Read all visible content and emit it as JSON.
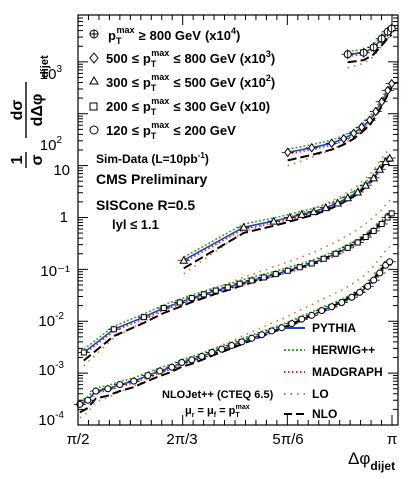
{
  "chart_data": {
    "type": "scatter",
    "title": "",
    "xlabel_main": "Δφ",
    "xlabel_sub": "dijet",
    "ylabel_frac_num": "1",
    "ylabel_frac_den": "σ",
    "ylabel_deriv_num": "dσ",
    "ylabel_deriv_den": "dΔφ",
    "ylabel_sub": "dijet",
    "xlim": [
      1.5708,
      3.1416
    ],
    "ylim": [
      0.0001,
      8000
    ],
    "y_scale": "log",
    "x_ticks": [
      {
        "value": 1.5708,
        "label": "π/2"
      },
      {
        "value": 2.0944,
        "label": "2π/3"
      },
      {
        "value": 2.618,
        "label": "5π/6"
      },
      {
        "value": 3.1416,
        "label": "π"
      }
    ],
    "y_ticks": [
      {
        "value": 0.0001,
        "label_base": "10",
        "label_exp": "-4"
      },
      {
        "value": 0.001,
        "label_base": "10",
        "label_exp": "-3"
      },
      {
        "value": 0.01,
        "label_base": "10",
        "label_exp": "-2"
      },
      {
        "value": 0.1,
        "label": "10⁻¹"
      },
      {
        "value": 1,
        "label": "1"
      },
      {
        "value": 10,
        "label": "10"
      },
      {
        "value": 100,
        "label_base": "10",
        "label_exp": "2"
      },
      {
        "value": 1000,
        "label_base": "10",
        "label_exp": "3"
      }
    ],
    "pt_bins": [
      {
        "symbol": "cross-circle",
        "name": "p_T^max ≥ 800 GeV (x10^4)",
        "low": "",
        "op1": "",
        "op2": "≥",
        "high": "800 GeV",
        "scale": "(x10",
        "scale_exp": "4",
        "scale_close": ")"
      },
      {
        "symbol": "diamond",
        "name": "500 ≤ p_T^max ≤ 800 GeV (x10^3)",
        "low": "500",
        "op1": "≤",
        "op2": "≤",
        "high": "800 GeV",
        "scale": "(x10",
        "scale_exp": "3",
        "scale_close": ")"
      },
      {
        "symbol": "triangle",
        "name": "300 ≤ p_T^max ≤ 500 GeV (x10^2)",
        "low": "300",
        "op1": "≤",
        "op2": "≤",
        "high": "500 GeV",
        "scale": "(x10",
        "scale_exp": "2",
        "scale_close": ")"
      },
      {
        "symbol": "square",
        "name": "200 ≤ p_T^max ≤ 300 GeV (x10)",
        "low": "200",
        "op1": "≤",
        "op2": "≤",
        "high": "300 GeV",
        "scale": "(x10)",
        "scale_exp": "",
        "scale_close": ""
      },
      {
        "symbol": "circle",
        "name": "120 ≤ p_T^max ≤ 200 GeV",
        "low": "120",
        "op1": "≤",
        "op2": "≤",
        "high": "200 GeV",
        "scale": "",
        "scale_exp": "",
        "scale_close": ""
      }
    ],
    "legend_pt_label": "p",
    "legend_pt_sub": "T",
    "legend_pt_sup": "max",
    "annotations": {
      "simdata": "Sim-Data (L=10pb",
      "simdata_exp": "-1",
      "simdata_close": ")",
      "cms": "CMS Preliminary",
      "siscone": "SISCone R=0.5",
      "rapidity": "lyl ≤ 1.1",
      "nlojet": "NLOJet++ (CTEQ 6.5)",
      "scale_mu": "μ",
      "scale_r": "r",
      "scale_eq": " = μ",
      "scale_f": "f",
      "scale_eq2": " = p",
      "scale_T": "T",
      "scale_max": "max"
    },
    "series": [
      {
        "name": "PYTHIA",
        "color": "#2040c0",
        "style": "solid"
      },
      {
        "name": "HERWIG++",
        "color": "#33aa33",
        "style": "dotted-dense"
      },
      {
        "name": "MADGRAPH",
        "color": "#dd2222",
        "style": "dotted"
      },
      {
        "name": "LO",
        "color": "#cc7733",
        "style": "dotted-sparse"
      },
      {
        "name": "NLO",
        "color": "#000000",
        "style": "dashed"
      }
    ],
    "data_points": {
      "circle": {
        "x": [
          1.58,
          1.62,
          1.66,
          1.72,
          1.78,
          1.85,
          1.92,
          1.98,
          2.04,
          2.09,
          2.14,
          2.19,
          2.24,
          2.29,
          2.34,
          2.39,
          2.44,
          2.49,
          2.54,
          2.59,
          2.64,
          2.69,
          2.74,
          2.79,
          2.84,
          2.89,
          2.94,
          2.98,
          3.02,
          3.05,
          3.08,
          3.11,
          3.13
        ],
        "y": [
          0.00025,
          0.0003,
          0.00045,
          0.0005,
          0.0006,
          0.0007,
          0.0009,
          0.0011,
          0.0013,
          0.0016,
          0.0018,
          0.0021,
          0.0025,
          0.0029,
          0.0034,
          0.004,
          0.0047,
          0.0055,
          0.0065,
          0.0075,
          0.009,
          0.011,
          0.013,
          0.016,
          0.019,
          0.023,
          0.029,
          0.036,
          0.047,
          0.062,
          0.085,
          0.12,
          0.14
        ]
      },
      "square": {
        "x": [
          1.6,
          1.75,
          1.9,
          2.0,
          2.08,
          2.14,
          2.2,
          2.26,
          2.32,
          2.38,
          2.44,
          2.5,
          2.56,
          2.62,
          2.68,
          2.74,
          2.8,
          2.86,
          2.92,
          2.97,
          3.01,
          3.05,
          3.09,
          3.12,
          3.14
        ],
        "y": [
          0.0025,
          0.007,
          0.012,
          0.018,
          0.023,
          0.028,
          0.033,
          0.039,
          0.045,
          0.053,
          0.061,
          0.07,
          0.081,
          0.094,
          0.11,
          0.13,
          0.16,
          0.2,
          0.26,
          0.33,
          0.42,
          0.55,
          0.75,
          1.0,
          1.2
        ]
      },
      "triangle": {
        "x": [
          2.1,
          2.4,
          2.55,
          2.63,
          2.69,
          2.75,
          2.81,
          2.87,
          2.92,
          2.97,
          3.01,
          3.05,
          3.08,
          3.11,
          3.13
        ],
        "y": [
          0.15,
          0.65,
          0.85,
          1.0,
          1.15,
          1.3,
          1.55,
          1.9,
          2.4,
          3.1,
          4.2,
          5.8,
          8.5,
          12,
          14
        ]
      },
      "diamond": {
        "x": [
          2.62,
          2.74,
          2.84,
          2.9,
          2.95,
          2.99,
          3.03,
          3.06,
          3.09,
          3.12,
          3.14
        ],
        "y": [
          18,
          22,
          27,
          33,
          42,
          55,
          75,
          110,
          170,
          280,
          380
        ]
      },
      "cross-circle": {
        "x": [
          2.92,
          3.0,
          3.05,
          3.09,
          3.12,
          3.14
        ],
        "y": [
          1400,
          1500,
          1900,
          2800,
          3800,
          4400
        ]
      }
    }
  }
}
